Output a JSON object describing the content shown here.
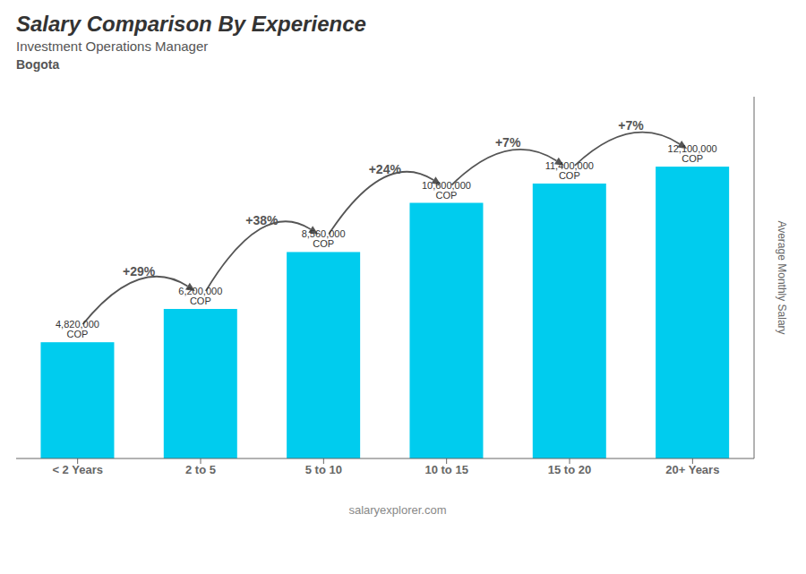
{
  "chart_data": {
    "type": "bar",
    "title": "Salary Comparison By Experience",
    "subtitle": [
      "Investment Operations Manager",
      "Bogota"
    ],
    "categories": [
      "< 2 Years",
      "2 to 5",
      "5 to 10",
      "10 to 15",
      "15 to 20",
      "20+ Years"
    ],
    "values": [
      4820000,
      6200000,
      8560000,
      10600000,
      11400000,
      12100000
    ],
    "value_labels": [
      "4,820,000 COP",
      "6,200,000 COP",
      "8,560,000 COP",
      "10,600,000 COP",
      "11,400,000 COP",
      "12,100,000 COP"
    ],
    "data_labels": true,
    "color": "#00ccee",
    "ylabel": "Average Monthly Salary",
    "ylim": [
      0,
      15000000
    ],
    "tick_labels": "x",
    "grid": false,
    "annotations": [
      {
        "text": "+29%",
        "from": "< 2 Years",
        "to": "2 to 5"
      },
      {
        "text": "+38%",
        "from": "2 to 5",
        "to": "5 to 10"
      },
      {
        "text": "+24%",
        "from": "5 to 10",
        "to": "10 to 15"
      },
      {
        "text": "+7%",
        "from": "10 to 15",
        "to": "15 to 20"
      },
      {
        "text": "+7%",
        "from": "15 to 20",
        "to": "20+ Years"
      },
      {
        "text": "salaryexplorer.com"
      }
    ]
  }
}
